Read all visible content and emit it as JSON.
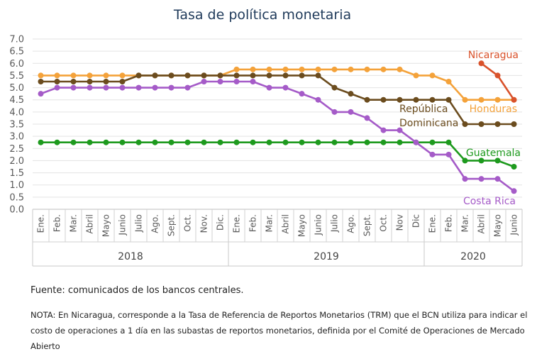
{
  "source": "Fuente: comunicados de los bancos centrales.",
  "note": "NOTA: En Nicaragua, corresponde a la Tasa de Referencia de Reportos Monetarios (TRM) que el BCN utiliza para indicar el costo de operaciones a 1 día en las subastas de reportos monetarios, definida por el Comité de Operaciones de Mercado Abierto",
  "chart_data": {
    "type": "line",
    "title": "Tasa de política monetaria",
    "xlabel": "",
    "ylabel": "",
    "ylim": [
      0,
      7
    ],
    "yticks": [
      "0.0",
      "0.5",
      "1.0",
      "1.5",
      "2.0",
      "2.5",
      "3.0",
      "3.5",
      "4.0",
      "4.5",
      "5.0",
      "5.5",
      "6.0",
      "6.5",
      "7.0"
    ],
    "grid": true,
    "legend": "inline labels",
    "categories": [
      "Ene.",
      "Feb.",
      "Mar.",
      "Abril",
      "Mayo",
      "Junio",
      "Julio",
      "Ago.",
      "Sept.",
      "Oct.",
      "Nov.",
      "Dic.",
      "Ene.",
      "Feb.",
      "Mar.",
      "Abril",
      "Mayo",
      "Junio",
      "Julio",
      "Ago.",
      "Sept.",
      "Oct.",
      "Nov",
      "Dic",
      "Ene.",
      "Feb.",
      "Mar.",
      "Abril",
      "Mayo",
      "Junio"
    ],
    "years": [
      {
        "label": "2018",
        "from": 0,
        "to": 11
      },
      {
        "label": "2019",
        "from": 12,
        "to": 23
      },
      {
        "label": "2020",
        "from": 24,
        "to": 29
      }
    ],
    "series": [
      {
        "name": "Honduras",
        "color": "#f4a23a",
        "label_lines": [
          "Honduras"
        ],
        "label_anchor": "end",
        "values": [
          5.5,
          5.5,
          5.5,
          5.5,
          5.5,
          5.5,
          5.5,
          5.5,
          5.5,
          5.5,
          5.5,
          5.5,
          5.75,
          5.75,
          5.75,
          5.75,
          5.75,
          5.75,
          5.75,
          5.75,
          5.75,
          5.75,
          5.75,
          5.5,
          5.5,
          5.25,
          4.5,
          4.5,
          4.5,
          4.5
        ]
      },
      {
        "name": "República Dominicana",
        "color": "#6b4c1e",
        "label_lines": [
          "República",
          "Dominicana"
        ],
        "label_anchor": "start",
        "values": [
          5.25,
          5.25,
          5.25,
          5.25,
          5.25,
          5.25,
          5.5,
          5.5,
          5.5,
          5.5,
          5.5,
          5.5,
          5.5,
          5.5,
          5.5,
          5.5,
          5.5,
          5.5,
          5.0,
          4.75,
          4.5,
          4.5,
          4.5,
          4.5,
          4.5,
          4.5,
          3.5,
          3.5,
          3.5,
          3.5
        ]
      },
      {
        "name": "Guatemala",
        "color": "#1e9a1e",
        "label_lines": [
          "Guatemala"
        ],
        "label_anchor": "end",
        "values": [
          2.75,
          2.75,
          2.75,
          2.75,
          2.75,
          2.75,
          2.75,
          2.75,
          2.75,
          2.75,
          2.75,
          2.75,
          2.75,
          2.75,
          2.75,
          2.75,
          2.75,
          2.75,
          2.75,
          2.75,
          2.75,
          2.75,
          2.75,
          2.75,
          2.75,
          2.75,
          2.0,
          2.0,
          2.0,
          1.75
        ]
      },
      {
        "name": "Costa Rica",
        "color": "#a55bc8",
        "label_lines": [
          "Costa Rica"
        ],
        "label_anchor": "end",
        "values": [
          4.75,
          5.0,
          5.0,
          5.0,
          5.0,
          5.0,
          5.0,
          5.0,
          5.0,
          5.0,
          5.25,
          5.25,
          5.25,
          5.25,
          5.0,
          5.0,
          4.75,
          4.5,
          4.0,
          4.0,
          3.75,
          3.25,
          3.25,
          2.75,
          2.25,
          2.25,
          1.25,
          1.25,
          1.25,
          0.75
        ]
      },
      {
        "name": "Nicaragua",
        "color": "#d9522b",
        "label_lines": [
          "Nicaragua"
        ],
        "label_anchor": "end",
        "values": [
          null,
          null,
          null,
          null,
          null,
          null,
          null,
          null,
          null,
          null,
          null,
          null,
          null,
          null,
          null,
          null,
          null,
          null,
          null,
          null,
          null,
          null,
          null,
          null,
          null,
          null,
          null,
          6.0,
          5.5,
          4.5
        ]
      }
    ]
  }
}
